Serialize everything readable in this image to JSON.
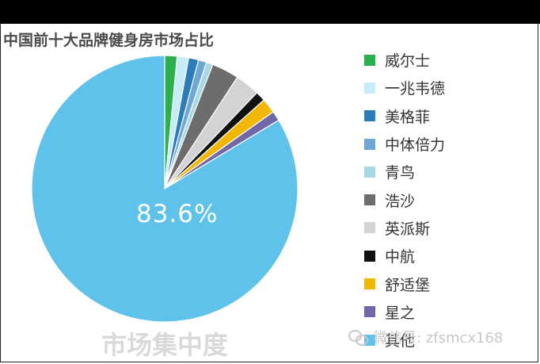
{
  "title": "中国前十大品牌健身房市场占比",
  "subtitle": "市场集中度",
  "watermark": "微信号: zfsmcx168",
  "chart_data": {
    "type": "pie",
    "title": "中国前十大品牌健身房市场占比",
    "start_angle_deg": 0,
    "direction": "clockwise",
    "legend_position": "right",
    "slices": [
      {
        "label": "威尔士",
        "value": 1.5,
        "color": "#2db04b"
      },
      {
        "label": "一兆韦德",
        "value": 1.4,
        "color": "#c5ecf7"
      },
      {
        "label": "美格菲",
        "value": 1.2,
        "color": "#2a7db8"
      },
      {
        "label": "中体倍力",
        "value": 1.0,
        "color": "#6ea6d4"
      },
      {
        "label": "青鸟",
        "value": 0.8,
        "color": "#a8d8e6"
      },
      {
        "label": "浩沙",
        "value": 3.3,
        "color": "#6d6d6d"
      },
      {
        "label": "英派斯",
        "value": 3.0,
        "color": "#d3d3d3"
      },
      {
        "label": "中航",
        "value": 1.2,
        "color": "#111111"
      },
      {
        "label": "舒适堡",
        "value": 1.8,
        "color": "#f2b705"
      },
      {
        "label": "星之",
        "value": 1.2,
        "color": "#7168a8"
      },
      {
        "label": "其他",
        "value": 83.6,
        "color": "#5ec2ea",
        "display_label": "83.6%"
      }
    ]
  }
}
